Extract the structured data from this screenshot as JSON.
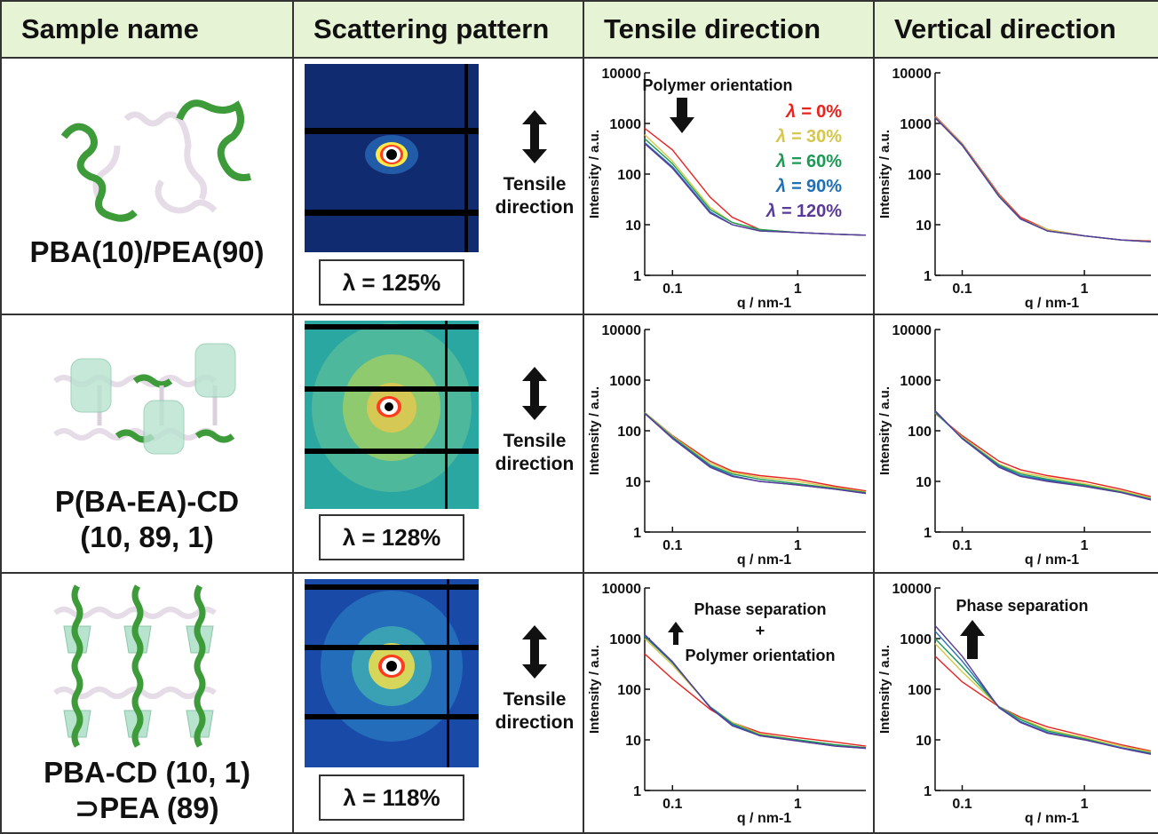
{
  "headers": {
    "sample_name": "Sample name",
    "scattering_pattern": "Scattering pattern",
    "tensile_direction": "Tensile direction",
    "vertical_direction": "Vertical direction"
  },
  "rows": [
    {
      "sample": "PBA(10)/PEA(90)",
      "lambda_label": "λ = 125%",
      "tensile_label": "Tensile\ndirection"
    },
    {
      "sample": "P(BA-EA)-CD\n(10, 89, 1)",
      "lambda_label": "λ = 128%",
      "tensile_label": "Tensile\ndirection"
    },
    {
      "sample": "PBA-CD (10, 1)\n⊃PEA (89)",
      "lambda_label": "λ = 118%",
      "tensile_label": "Tensile\ndirection"
    }
  ],
  "plot_annotations": {
    "r1_tensile": "Polymer orientation",
    "r3_tensile_line1": "Phase separation",
    "r3_tensile_line2": "+",
    "r3_tensile_line3": "Polymer orientation",
    "r3_vertical": "Phase separation"
  },
  "colors": {
    "header_bg": "#e7f3d5",
    "grid": "#333333",
    "series": [
      "#e8231f",
      "#d6c64a",
      "#1a9a54",
      "#1f6fb5",
      "#5a3a99"
    ]
  },
  "chart_data": {
    "type": "line",
    "xlabel": "q / nm-1",
    "ylabel": "Intensity / a.u.",
    "x_scale": "log",
    "y_scale": "log",
    "xlim": [
      0.06,
      3.5
    ],
    "ylim": [
      1,
      10000
    ],
    "x_ticks": [
      "0.1",
      "1"
    ],
    "y_ticks": [
      "1",
      "10",
      "100",
      "1000",
      "10000"
    ],
    "legend": [
      {
        "prefix": "λ =",
        "value": "0%",
        "color": "#e8231f"
      },
      {
        "prefix": "λ =",
        "value": "30%",
        "color": "#d6c64a"
      },
      {
        "prefix": "λ =",
        "value": "60%",
        "color": "#1a9a54"
      },
      {
        "prefix": "λ =",
        "value": "90%",
        "color": "#1f6fb5"
      },
      {
        "prefix": "λ =",
        "value": "120%",
        "color": "#5a3a99"
      }
    ],
    "panels": [
      {
        "id": "r1-tensile",
        "x": [
          0.06,
          0.1,
          0.2,
          0.3,
          0.5,
          1,
          2,
          3.5
        ],
        "series": [
          [
            800,
            300,
            35,
            14,
            8,
            7,
            6.5,
            6.2
          ],
          [
            600,
            180,
            22,
            11,
            8,
            7,
            6.5,
            6.2
          ],
          [
            500,
            160,
            20,
            11,
            8,
            7,
            6.5,
            6.2
          ],
          [
            420,
            140,
            18,
            10,
            7.5,
            7,
            6.5,
            6.2
          ],
          [
            400,
            130,
            17,
            10,
            7.5,
            7,
            6.5,
            6.2
          ]
        ]
      },
      {
        "id": "r1-vertical",
        "x": [
          0.06,
          0.1,
          0.2,
          0.3,
          0.5,
          1,
          2,
          3.5
        ],
        "series": [
          [
            1400,
            400,
            40,
            14,
            8,
            6,
            5,
            4.8
          ],
          [
            1350,
            390,
            38,
            13,
            8,
            6,
            5,
            4.7
          ],
          [
            1300,
            380,
            37,
            13,
            7.5,
            6,
            5,
            4.6
          ],
          [
            1300,
            370,
            36,
            13,
            7.5,
            6,
            5,
            4.6
          ],
          [
            1300,
            370,
            36,
            13,
            7.5,
            6,
            5,
            4.6
          ]
        ]
      },
      {
        "id": "r2-tensile",
        "x": [
          0.06,
          0.1,
          0.2,
          0.3,
          0.5,
          1,
          2,
          3.5
        ],
        "series": [
          [
            230,
            80,
            25,
            16,
            13,
            11,
            8,
            6.5
          ],
          [
            230,
            78,
            23,
            15,
            12,
            10,
            7.5,
            6.2
          ],
          [
            225,
            75,
            21,
            14,
            11,
            9,
            7.2,
            6
          ],
          [
            220,
            72,
            20,
            13,
            10,
            8.5,
            7,
            5.8
          ],
          [
            220,
            70,
            19,
            12.5,
            10,
            8.5,
            7,
            5.8
          ]
        ]
      },
      {
        "id": "r2-vertical",
        "x": [
          0.06,
          0.1,
          0.2,
          0.3,
          0.5,
          1,
          2,
          3.5
        ],
        "series": [
          [
            220,
            80,
            25,
            17,
            13,
            10,
            7,
            5
          ],
          [
            225,
            75,
            22,
            15,
            12,
            9,
            6.5,
            4.7
          ],
          [
            230,
            72,
            21,
            14,
            11,
            8.5,
            6.2,
            4.5
          ],
          [
            240,
            70,
            20,
            13,
            10.5,
            8,
            6,
            4.4
          ],
          [
            250,
            70,
            19,
            12.5,
            10,
            8,
            6,
            4.3
          ]
        ]
      },
      {
        "id": "r3-tensile",
        "x": [
          0.06,
          0.1,
          0.2,
          0.3,
          0.5,
          1,
          2,
          3.5
        ],
        "series": [
          [
            500,
            160,
            40,
            22,
            14,
            11,
            9,
            7.5
          ],
          [
            1000,
            300,
            45,
            22,
            13,
            10,
            8,
            7
          ],
          [
            1100,
            330,
            45,
            21,
            12.5,
            10,
            8,
            7
          ],
          [
            1150,
            340,
            44,
            20,
            12,
            9.5,
            7.5,
            6.8
          ],
          [
            1200,
            350,
            43,
            19,
            12,
            9.5,
            7.5,
            6.8
          ]
        ]
      },
      {
        "id": "r3-vertical",
        "x": [
          0.06,
          0.1,
          0.2,
          0.3,
          0.5,
          1,
          2,
          3.5
        ],
        "series": [
          [
            450,
            140,
            45,
            28,
            18,
            12,
            8,
            6
          ],
          [
            800,
            220,
            45,
            26,
            16,
            11,
            7.5,
            5.8
          ],
          [
            1000,
            280,
            45,
            25,
            15,
            10.5,
            7,
            5.5
          ],
          [
            1400,
            360,
            44,
            23,
            14,
            10,
            7,
            5.3
          ],
          [
            1800,
            450,
            43,
            22,
            13.5,
            10,
            6.8,
            5.2
          ]
        ]
      }
    ]
  }
}
